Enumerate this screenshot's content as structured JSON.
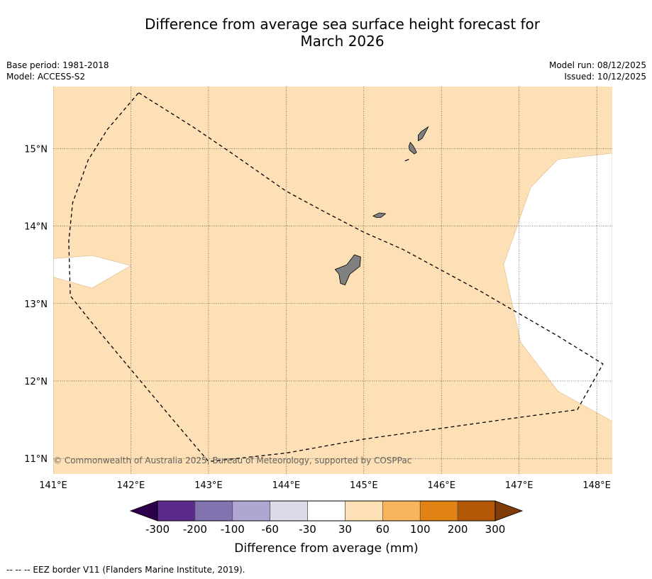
{
  "title": {
    "line1": "Difference from average sea surface height forecast for",
    "line2": "March 2026"
  },
  "header_left": {
    "base_period": "Base period: 1981-2018",
    "model": "Model: ACCESS-S2"
  },
  "header_right": {
    "model_run": "Model run: 08/12/2025",
    "issued": "Issued: 10/12/2025"
  },
  "map": {
    "lon_range": [
      141.0,
      148.2
    ],
    "lat_range": [
      10.8,
      15.8
    ],
    "lon_ticks": [
      141,
      142,
      143,
      144,
      145,
      146,
      147,
      148
    ],
    "lon_labels": [
      "141°E",
      "142°E",
      "143°E",
      "144°E",
      "145°E",
      "146°E",
      "147°E",
      "148°E"
    ],
    "lat_ticks": [
      11,
      12,
      13,
      14,
      15
    ],
    "lat_labels": [
      "11°N",
      "12°N",
      "13°N",
      "14°N",
      "15°N"
    ],
    "background_category": "30 to 60 mm",
    "background_color": "#fde0b6",
    "neutral_color": "#ffffff",
    "land_color": "#808080",
    "copyright": "© Commonwealth of Australia 2025, Bureau of Meteorology, supported by COSPPac",
    "white_patches": [
      {
        "name": "west-patch",
        "coords": [
          [
            141.0,
            13.58
          ],
          [
            141.5,
            13.62
          ],
          [
            142.0,
            13.49
          ],
          [
            141.5,
            13.2
          ],
          [
            141.0,
            13.34
          ]
        ]
      },
      {
        "name": "east-patch",
        "coords": [
          [
            148.2,
            14.94
          ],
          [
            147.5,
            14.86
          ],
          [
            147.15,
            14.5
          ],
          [
            146.8,
            13.5
          ],
          [
            147.02,
            12.5
          ],
          [
            147.5,
            11.87
          ],
          [
            148.2,
            11.48
          ]
        ]
      }
    ],
    "islands": [
      {
        "name": "guam",
        "coords": [
          [
            144.88,
            13.63
          ],
          [
            144.96,
            13.6
          ],
          [
            144.95,
            13.48
          ],
          [
            144.82,
            13.38
          ],
          [
            144.76,
            13.24
          ],
          [
            144.7,
            13.26
          ],
          [
            144.68,
            13.38
          ],
          [
            144.63,
            13.44
          ],
          [
            144.78,
            13.5
          ]
        ]
      },
      {
        "name": "rota",
        "coords": [
          [
            145.12,
            14.13
          ],
          [
            145.2,
            14.17
          ],
          [
            145.28,
            14.16
          ],
          [
            145.22,
            14.11
          ],
          [
            145.16,
            14.11
          ]
        ]
      },
      {
        "name": "tinian",
        "coords": [
          [
            145.6,
            15.08
          ],
          [
            145.64,
            15.03
          ],
          [
            145.68,
            14.95
          ],
          [
            145.65,
            14.93
          ],
          [
            145.59,
            14.98
          ],
          [
            145.58,
            15.03
          ]
        ]
      },
      {
        "name": "saipan",
        "coords": [
          [
            145.74,
            15.22
          ],
          [
            145.83,
            15.28
          ],
          [
            145.79,
            15.2
          ],
          [
            145.75,
            15.13
          ],
          [
            145.7,
            15.1
          ],
          [
            145.7,
            15.17
          ]
        ]
      },
      {
        "name": "aguijan",
        "coords": [
          [
            145.53,
            14.84
          ],
          [
            145.58,
            14.86
          ]
        ]
      }
    ],
    "eez_border": [
      [
        142.1,
        15.72
      ],
      [
        142.8,
        15.28
      ],
      [
        143.3,
        14.94
      ],
      [
        144.0,
        14.45
      ],
      [
        144.5,
        14.18
      ],
      [
        145.0,
        13.92
      ],
      [
        145.5,
        13.7
      ],
      [
        146.0,
        13.43
      ],
      [
        146.5,
        13.16
      ],
      [
        147.0,
        12.87
      ],
      [
        147.5,
        12.58
      ],
      [
        148.08,
        12.22
      ],
      [
        147.75,
        11.63
      ],
      [
        147.0,
        11.53
      ],
      [
        146.0,
        11.39
      ],
      [
        145.0,
        11.25
      ],
      [
        144.0,
        11.07
      ],
      [
        143.0,
        10.96
      ],
      [
        142.5,
        11.55
      ],
      [
        142.0,
        12.15
      ],
      [
        141.5,
        12.75
      ],
      [
        141.22,
        13.1
      ],
      [
        141.2,
        13.8
      ],
      [
        141.25,
        14.3
      ],
      [
        141.45,
        14.85
      ],
      [
        141.7,
        15.25
      ],
      [
        142.1,
        15.72
      ]
    ]
  },
  "colorbar": {
    "bins": [
      "#5a2a8c",
      "#8272b0",
      "#b0a6d2",
      "#dadaeb",
      "#ffffff",
      "#fde0b6",
      "#f9b45e",
      "#e08214",
      "#b35806"
    ],
    "under_color": "#2d004b",
    "over_color": "#7f3b08",
    "tick_labels": [
      "-300",
      "-200",
      "-100",
      "-60",
      "-30",
      "30",
      "60",
      "100",
      "200",
      "300"
    ],
    "label": "Difference from average (mm)"
  },
  "footnote": "--  --  -- EEZ border V11 (Flanders Marine Institute, 2019)."
}
